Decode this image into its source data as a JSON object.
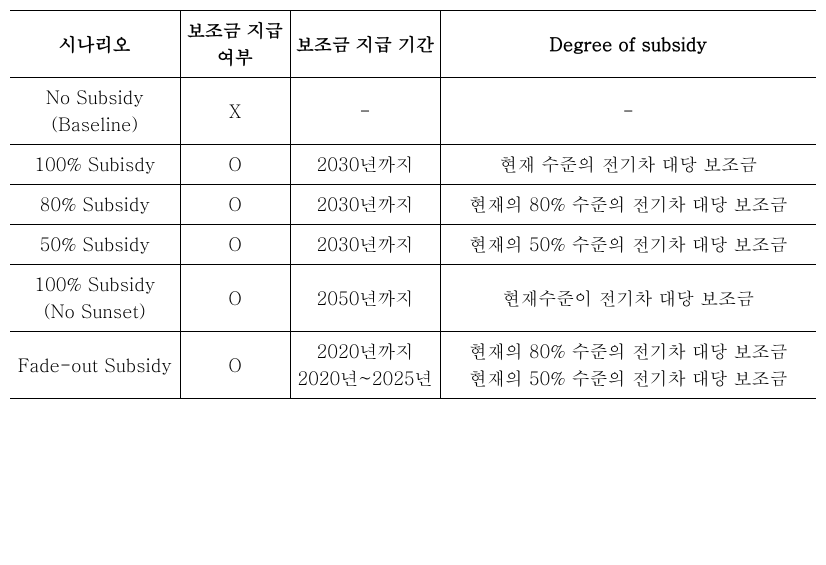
{
  "table": {
    "columns": [
      "시나리오",
      "보조금 지급 여부",
      "보조금 지급 기간",
      "Degree of subsidy"
    ],
    "rows": [
      {
        "scenario": "No Subsidy\n(Baseline)",
        "provided": "X",
        "period": "-",
        "degree": "-"
      },
      {
        "scenario": "100% Subisdy",
        "provided": "O",
        "period": "2030년까지",
        "degree": "현재 수준의 전기차 대당 보조금"
      },
      {
        "scenario": "80% Subsidy",
        "provided": "O",
        "period": "2030년까지",
        "degree": "현재의 80% 수준의 전기차 대당 보조금"
      },
      {
        "scenario": "50% Subsidy",
        "provided": "O",
        "period": "2030년까지",
        "degree": "현재의 50% 수준의 전기차 대당 보조금"
      },
      {
        "scenario": "100% Subsidy\n(No Sunset)",
        "provided": "O",
        "period": "2050년까지",
        "degree": "현재수준이 전기차 대당 보조금"
      },
      {
        "scenario": "Fade-out Subsidy",
        "provided": "O",
        "period": "2020년까지\n2020년~2025년",
        "degree": "현재의 80% 수준의 전기차 대당 보조금\n현재의 50% 수준의 전기차 대당 보조금"
      }
    ]
  }
}
